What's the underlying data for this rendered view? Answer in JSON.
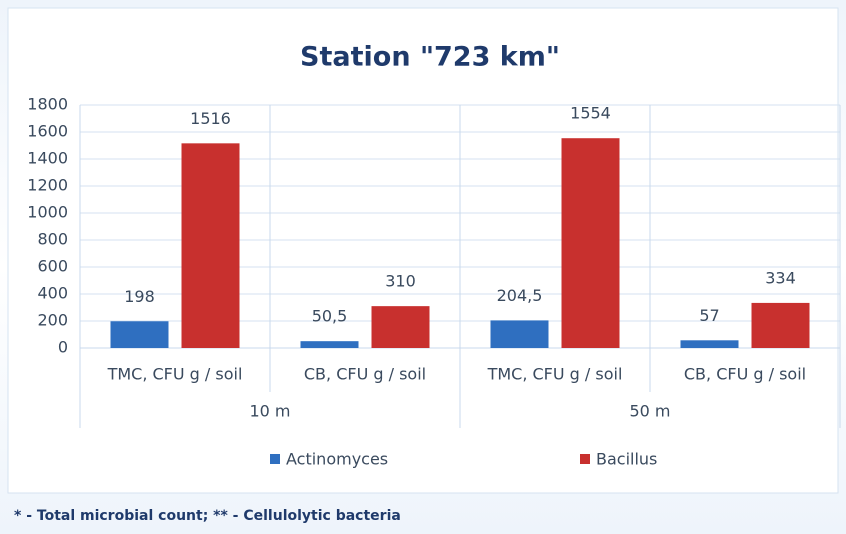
{
  "chart_data": {
    "type": "bar",
    "title": "Station \"723 km\"",
    "categories": [
      "TMC, CFU g / soil",
      "CB, CFU g / soil",
      "TMC, CFU g / soil",
      "CB, CFU g / soil"
    ],
    "category_groups": [
      "10 m",
      "50 m"
    ],
    "series": [
      {
        "name": "Actinomyces",
        "color": "#2f6fc0",
        "values": [
          198,
          50.5,
          204.5,
          57
        ],
        "value_labels": [
          "198",
          "50,5",
          "204,5",
          "57"
        ]
      },
      {
        "name": "Bacillus",
        "color": "#c8302e",
        "values": [
          1516,
          310,
          1554,
          334
        ]
      }
    ],
    "ylim": [
      0,
      1800
    ],
    "yticks": [
      0,
      200,
      400,
      600,
      800,
      1000,
      1200,
      1400,
      1600,
      1800
    ],
    "grid": true,
    "legend": "bottom",
    "footnote": "* - Total microbial count; ** - Cellulolytic bacteria"
  }
}
